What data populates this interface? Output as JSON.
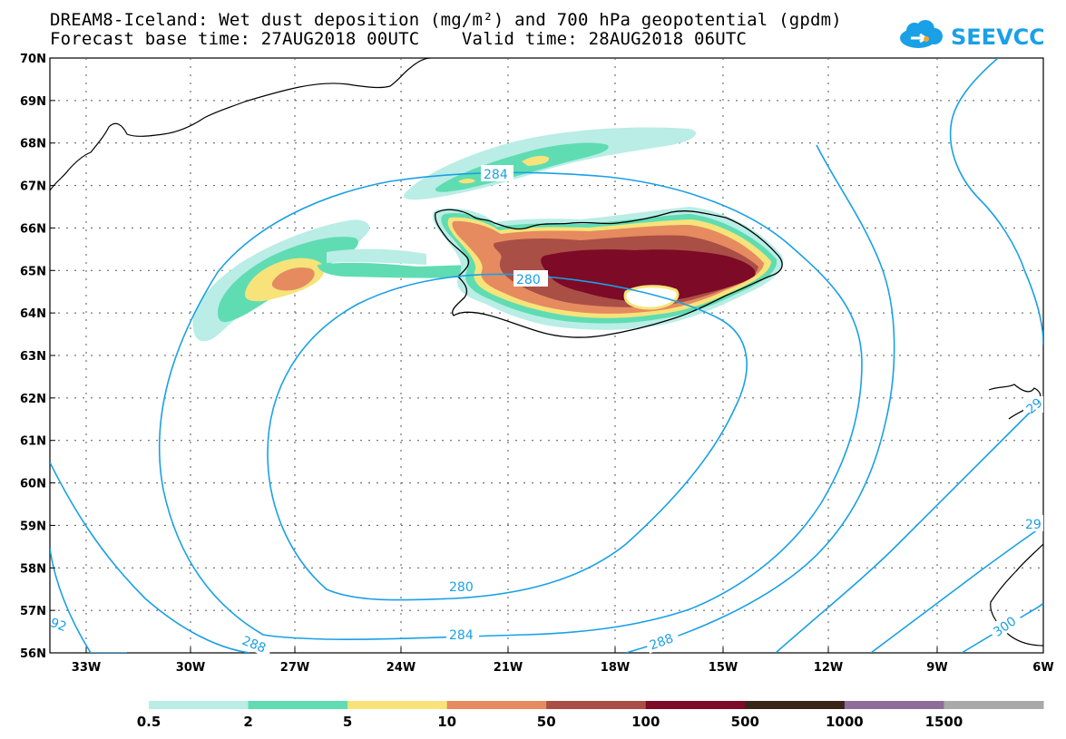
{
  "title": {
    "line1": "DREAM8-Iceland: Wet dust deposition (mg/m²) and 700 hPa geopotential (gpdm)",
    "line2": "Forecast base time: 27AUG2018 00UTC    Valid time: 28AUG2018 06UTC"
  },
  "logo": {
    "text": "SEEVCCC",
    "icon": "cloud-icon",
    "color": "#1aa0e6"
  },
  "axes": {
    "lat_labels": [
      "70N",
      "69N",
      "68N",
      "67N",
      "66N",
      "65N",
      "64N",
      "63N",
      "62N",
      "61N",
      "60N",
      "59N",
      "58N",
      "57N",
      "56N"
    ],
    "lon_labels": [
      "33W",
      "30W",
      "27W",
      "24W",
      "21W",
      "18W",
      "15W",
      "12W",
      "9W",
      "6W"
    ]
  },
  "contours": {
    "color": "#1aa0e6",
    "labels": [
      "280",
      "284",
      "280",
      "284",
      "288",
      "288",
      "300",
      "92",
      "29",
      "29"
    ]
  },
  "colorbar": {
    "labels": [
      "0.5",
      "2",
      "5",
      "10",
      "50",
      "100",
      "500",
      "1000",
      "1500"
    ],
    "colors": [
      "#b9ede6",
      "#5fdcb2",
      "#f7e37a",
      "#e58b5f",
      "#a94f46",
      "#7d0a26",
      "#3a2418",
      "#8e6d9c",
      "#a9a9a9"
    ]
  }
}
